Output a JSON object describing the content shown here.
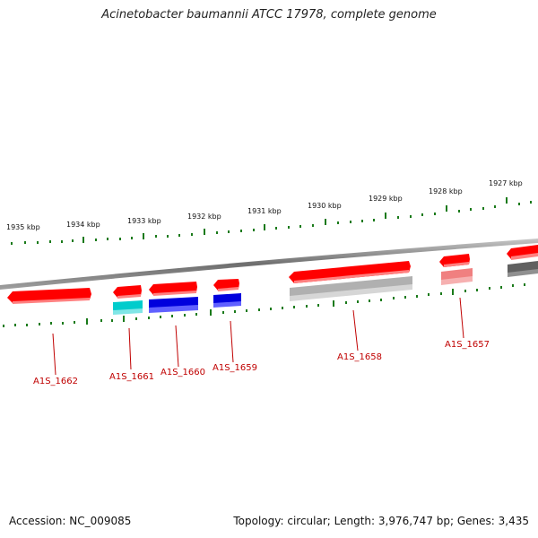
{
  "title": "Acinetobacter baumannii ATCC 17978, complete genome",
  "footer": {
    "accession": "Accession: NC_009085",
    "summary": "Topology: circular; Length: 3,976,747 bp; Genes: 3,435"
  },
  "kbp_ticks": [
    "1935 kbp",
    "1934 kbp",
    "1933 kbp",
    "1932 kbp",
    "1931 kbp",
    "1930 kbp",
    "1929 kbp",
    "1928 kbp",
    "1927 kbp"
  ],
  "genes": [
    {
      "label": "A1S_1662",
      "color_top": "#ff0000",
      "color_bottom": "#ff6060"
    },
    {
      "label": "A1S_1661",
      "color_top": "#ff0000",
      "color_bottom": "#00cccc"
    },
    {
      "label": "A1S_1660",
      "color_top": "#ff0000",
      "color_bottom": "#0000dd"
    },
    {
      "label": "A1S_1659",
      "color_top": "#ff0000",
      "color_bottom": "#0000dd"
    },
    {
      "label": "A1S_1658",
      "color_top": "#ff0000",
      "color_bottom": "#b0b0b0"
    },
    {
      "label": "A1S_1657",
      "color_top": "#ff0000",
      "color_bottom": "#f08080"
    }
  ],
  "colors": {
    "backbone": "#8a8a8a",
    "tick": "#1a7a1a",
    "label": "#c00000"
  }
}
